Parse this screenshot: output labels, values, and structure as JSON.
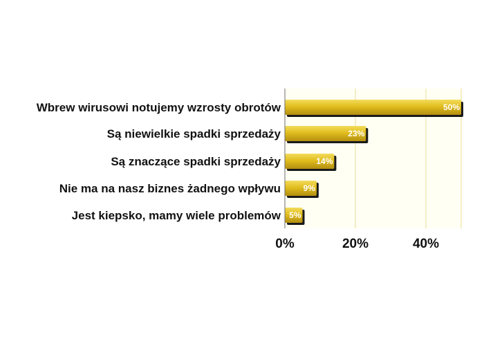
{
  "chart_data": {
    "type": "bar",
    "orientation": "horizontal",
    "categories": [
      "Wbrew wirusowi notujemy wzrosty obrotów",
      "Są niewielkie spadki sprzedaży",
      "Są znaczące spadki sprzedaży",
      "Nie ma na nasz biznes żadnego wpływu",
      "Jest kiepsko, mamy wiele problemów"
    ],
    "values": [
      50,
      23,
      14,
      9,
      5
    ],
    "data_labels": [
      "50%",
      "23%",
      "14%",
      "9%",
      "5%"
    ],
    "x_ticks": [
      0,
      20,
      40
    ],
    "x_tick_labels": [
      "0%",
      "20%",
      "40%"
    ],
    "xlim": [
      0,
      50
    ],
    "grid": true,
    "legend": "none",
    "title": "",
    "xlabel": "",
    "ylabel": "",
    "colors": {
      "bar_light": "#f3dc5c",
      "bar_mid": "#e1bd1e",
      "bar_dark": "#b28e10",
      "bar_shadow": "#1a1a1a",
      "plot_bg": "#fffff4",
      "gridline": "#e8dc9a",
      "axis": "#6e6e6e"
    }
  }
}
